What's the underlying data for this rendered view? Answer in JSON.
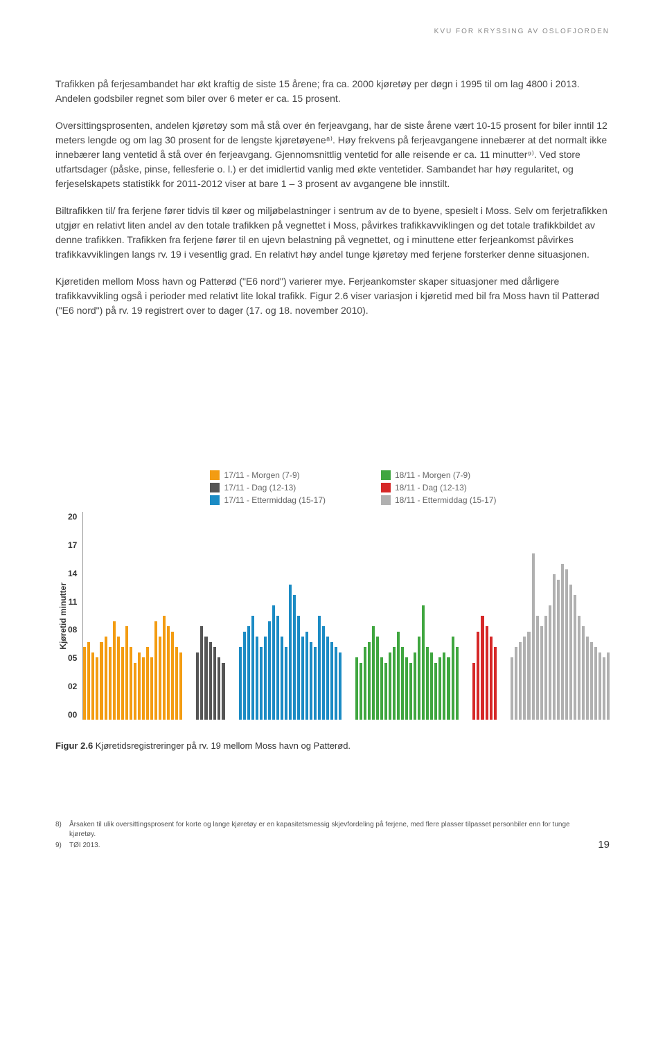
{
  "header": "KVU FOR KRYSSING AV OSLOFJORDEN",
  "paragraphs": {
    "p1": "Trafikken på ferjesambandet har økt kraftig de siste 15 årene; fra ca. 2000 kjøretøy per døgn i 1995 til om lag 4800 i 2013. Andelen godsbiler regnet som biler over 6 meter er ca. 15 prosent.",
    "p2": "Oversittingsprosenten, andelen kjøretøy som må stå over én ferjeavgang, har de siste årene vært 10-15 prosent for biler inntil 12 meters lengde og om lag 30 prosent for de lengste kjøretøyene⁸⁾. Høy frekvens på ferjeavgangene innebærer at det normalt ikke innebærer lang ventetid å stå over én ferjeavgang. Gjennomsnittlig ventetid for alle reisende er ca. 11 minutter⁹⁾. Ved store utfartsdager (påske, pinse, fellesferie o. l.) er det imidlertid vanlig med økte ventetider. Sambandet har høy regularitet, og ferjeselskapets statistikk for 2011-2012 viser at bare 1 – 3 prosent av avgangene ble innstilt.",
    "p3": "Biltrafikken til/ fra ferjene fører tidvis til køer og miljøbelastninger i sentrum av de to byene, spesielt i Moss. Selv om ferjetrafikken utgjør en relativt liten andel av den totale trafikken på vegnettet i Moss, påvirkes trafikkavviklingen og det totale trafikkbildet av denne trafikken. Trafikken fra ferjene fører til en ujevn belastning på vegnettet, og i minuttene etter ferjeankomst påvirkes trafikkavviklingen langs rv. 19 i vesentlig grad. En relativt høy andel tunge kjøretøy med ferjene forsterker denne situasjonen.",
    "p4": "Kjøretiden mellom Moss havn og Patterød (\"E6 nord\") varierer mye. Ferjeankomster skaper situasjoner med dårligere trafikkavvikling også i perioder med relativt lite lokal trafikk. Figur 2.6 viser variasjon i kjøretid med bil fra Moss havn til Patterød (\"E6 nord\") på rv. 19 registrert over to dager (17. og 18. november 2010)."
  },
  "chart": {
    "type": "bar",
    "ylabel": "Kjøretid  minutter",
    "yticks": [
      "20",
      "17",
      "14",
      "11",
      "08",
      "05",
      "02",
      "00"
    ],
    "ymax": 20,
    "background_color": "#ffffff",
    "legend": {
      "left": [
        {
          "color": "#f39c12",
          "label": "17/11 - Morgen (7-9)"
        },
        {
          "color": "#555555",
          "label": "17/11 - Dag (12-13)"
        },
        {
          "color": "#1b8bc4",
          "label": "17/11 - Ettermiddag (15-17)"
        }
      ],
      "right": [
        {
          "color": "#3fa63f",
          "label": "18/11 - Morgen (7-9)"
        },
        {
          "color": "#d62828",
          "label": "18/11 - Dag (12-13)"
        },
        {
          "color": "#b0b0b0",
          "label": "18/11 - Ettermiddag (15-17)"
        }
      ]
    },
    "groups": [
      {
        "color": "#f39c12",
        "values": [
          7,
          7.5,
          6.5,
          6,
          7.5,
          8,
          7,
          9.5,
          8,
          7,
          9,
          7,
          5.5,
          6.5,
          6,
          7,
          6,
          9.5,
          8,
          10,
          9,
          8.5,
          7,
          6.5
        ]
      },
      {
        "color": "#555555",
        "values": [
          6.5,
          9,
          8,
          7.5,
          7,
          6,
          5.5
        ]
      },
      {
        "color": "#1b8bc4",
        "values": [
          7,
          8.5,
          9,
          10,
          8,
          7,
          8,
          9.5,
          11,
          10,
          8,
          7,
          13,
          12,
          10,
          8,
          8.5,
          7.5,
          7,
          10,
          9,
          8,
          7.5,
          7,
          6.5
        ]
      },
      {
        "color": "#3fa63f",
        "values": [
          6,
          5.5,
          7,
          7.5,
          9,
          8,
          6,
          5.5,
          6.5,
          7,
          8.5,
          7,
          6,
          5.5,
          6.5,
          8,
          11,
          7,
          6.5,
          5.5,
          6,
          6.5,
          6,
          8,
          7
        ]
      },
      {
        "color": "#d62828",
        "values": [
          5.5,
          8.5,
          10,
          9,
          8,
          7
        ]
      },
      {
        "color": "#b0b0b0",
        "values": [
          6,
          7,
          7.5,
          8,
          8.5,
          16,
          10,
          9,
          10,
          11,
          14,
          13.5,
          15,
          14.5,
          13,
          12,
          10,
          9,
          8,
          7.5,
          7,
          6.5,
          6,
          6.5
        ]
      }
    ]
  },
  "caption": {
    "label": "Figur 2.6",
    "text": "  Kjøretidsregistreringer på rv. 19 mellom Moss havn og Patterød."
  },
  "footnotes": {
    "f8_num": "8)",
    "f8_text": "Årsaken til ulik oversittingsprosent for korte og lange kjøretøy er en kapasitetsmessig skjevfordeling på ferjene, med flere plasser tilpasset personbiler enn for tunge kjøretøy.",
    "f9_num": "9)",
    "f9_text": "TØI 2013."
  },
  "page_number": "19"
}
